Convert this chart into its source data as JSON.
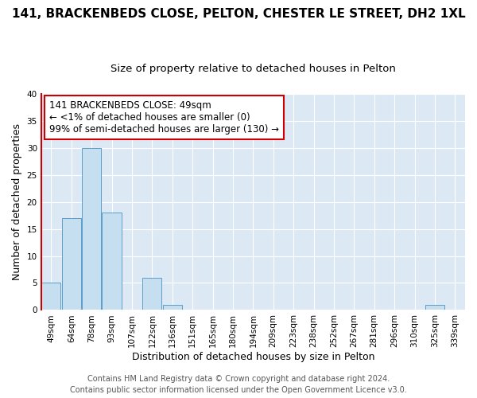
{
  "title": "141, BRACKENBEDS CLOSE, PELTON, CHESTER LE STREET, DH2 1XL",
  "subtitle": "Size of property relative to detached houses in Pelton",
  "xlabel": "Distribution of detached houses by size in Pelton",
  "ylabel": "Number of detached properties",
  "categories": [
    "49sqm",
    "64sqm",
    "78sqm",
    "93sqm",
    "107sqm",
    "122sqm",
    "136sqm",
    "151sqm",
    "165sqm",
    "180sqm",
    "194sqm",
    "209sqm",
    "223sqm",
    "238sqm",
    "252sqm",
    "267sqm",
    "281sqm",
    "296sqm",
    "310sqm",
    "325sqm",
    "339sqm"
  ],
  "values": [
    5,
    17,
    30,
    18,
    0,
    6,
    1,
    0,
    0,
    0,
    0,
    0,
    0,
    0,
    0,
    0,
    0,
    0,
    0,
    1,
    0
  ],
  "bar_color": "#c5dff0",
  "bar_edge_color": "#5b9ec9",
  "annotation_text": "141 BRACKENBEDS CLOSE: 49sqm\n← <1% of detached houses are smaller (0)\n99% of semi-detached houses are larger (130) →",
  "annotation_box_color": "#ffffff",
  "annotation_box_edge_color": "#cc0000",
  "ylim": [
    0,
    40
  ],
  "yticks": [
    0,
    5,
    10,
    15,
    20,
    25,
    30,
    35,
    40
  ],
  "footer_line1": "Contains HM Land Registry data © Crown copyright and database right 2024.",
  "footer_line2": "Contains public sector information licensed under the Open Government Licence v3.0.",
  "bg_color": "#ffffff",
  "plot_bg_color": "#dce9f5",
  "grid_color": "#ffffff",
  "left_spine_color": "#cc0000",
  "title_fontsize": 11,
  "subtitle_fontsize": 9.5,
  "axis_label_fontsize": 9,
  "tick_fontsize": 7.5,
  "annotation_fontsize": 8.5,
  "footer_fontsize": 7
}
